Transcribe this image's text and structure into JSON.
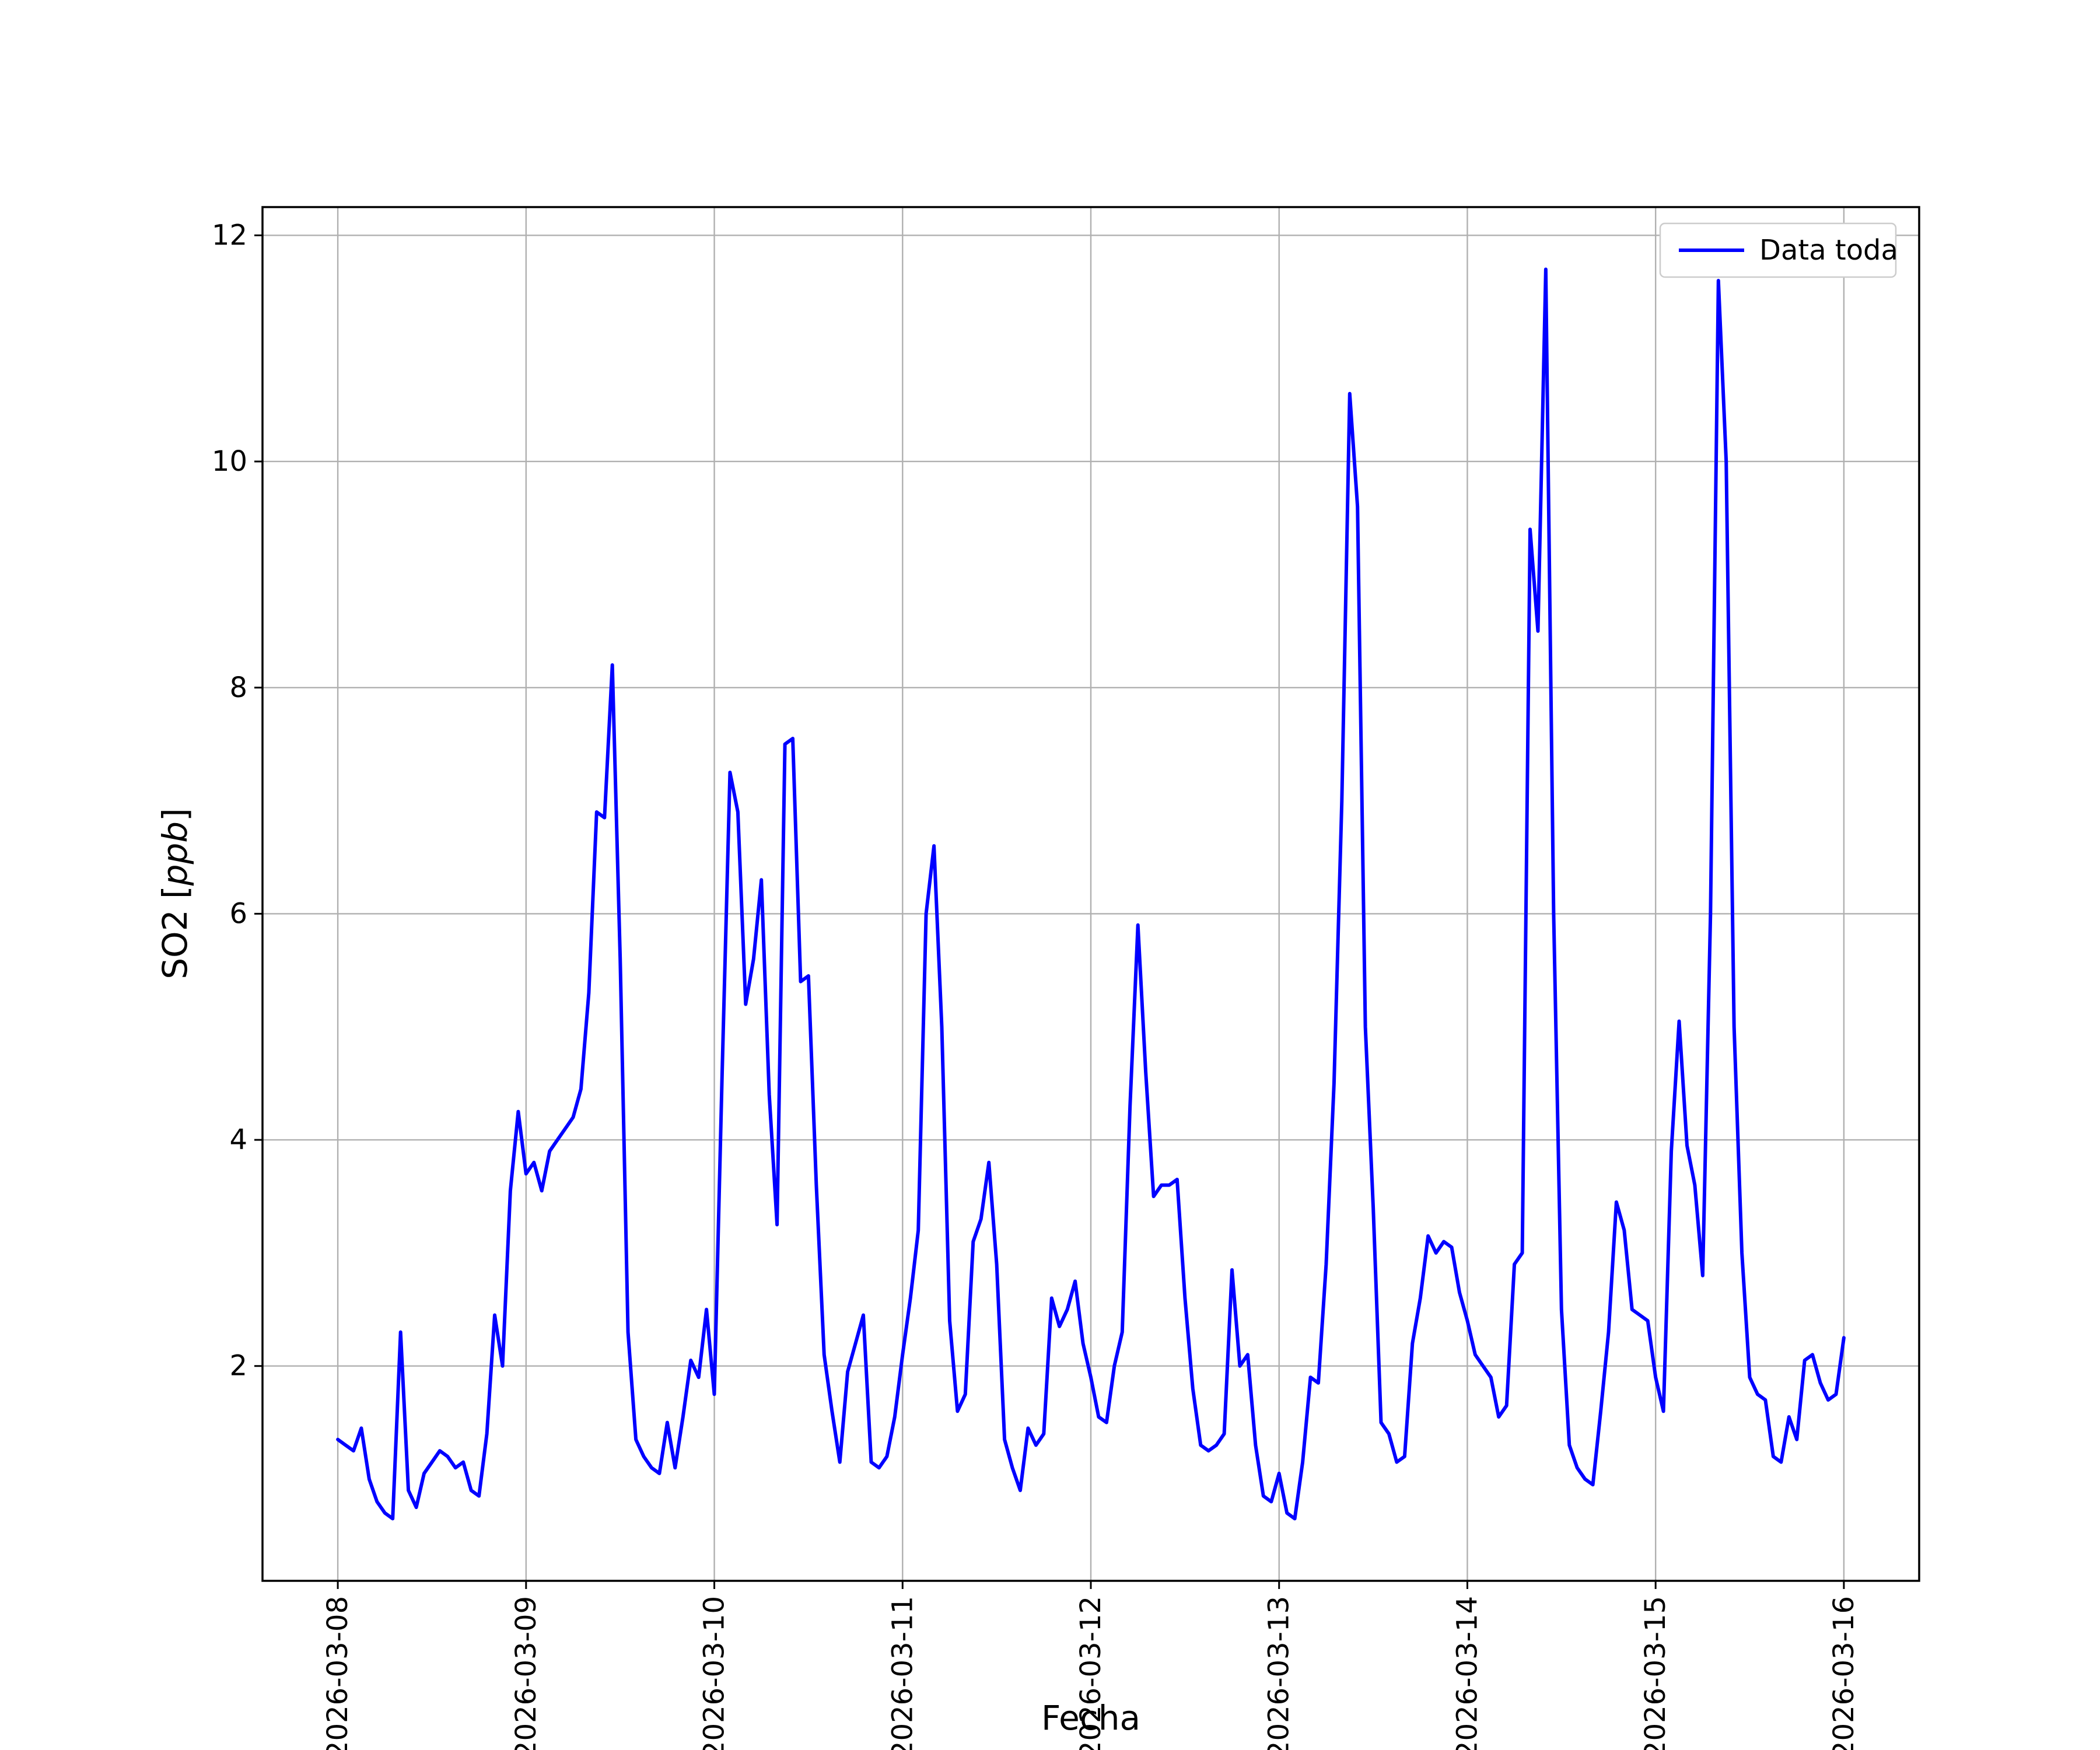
{
  "figure": {
    "background": "#ffffff",
    "frame_color": "#000000",
    "grid_color": "#b0b0b0",
    "xlabel": "Fecha",
    "ylabel_prefix": "SO2 [",
    "ylabel_italic": "ppb",
    "ylabel_suffix": "]",
    "legend": {
      "label": "Data toda",
      "line_color": "#0000ff",
      "position": "upper right"
    }
  },
  "chart_data": {
    "type": "line",
    "title": "",
    "xlabel": "Fecha",
    "ylabel": "SO2 [ppb]",
    "grid": true,
    "legend_position": "upper right",
    "x_tick_labels": [
      "2026-03-08",
      "2026-03-09",
      "2026-03-10",
      "2026-03-11",
      "2026-03-12",
      "2026-03-13",
      "2026-03-14",
      "2026-03-15",
      "2026-03-16"
    ],
    "y_ticks": [
      2,
      4,
      6,
      8,
      10,
      12
    ],
    "xlim_days_relative_to_first_tick": [
      -0.4,
      8.4
    ],
    "ylim": [
      0.1,
      12.25
    ],
    "series": [
      {
        "name": "Data toda",
        "color": "#0000ff",
        "start": "2026-03-08 00:00",
        "interval_hours": 1,
        "values": [
          1.35,
          1.3,
          1.25,
          1.45,
          1.0,
          0.8,
          0.7,
          0.65,
          2.3,
          0.9,
          0.75,
          1.05,
          1.15,
          1.25,
          1.2,
          1.1,
          1.15,
          0.9,
          0.85,
          1.4,
          2.45,
          2.0,
          3.55,
          4.25,
          3.7,
          3.8,
          3.55,
          3.9,
          4.0,
          4.1,
          4.2,
          4.45,
          5.3,
          6.9,
          6.85,
          8.2,
          5.6,
          2.3,
          1.35,
          1.2,
          1.1,
          1.05,
          1.5,
          1.1,
          1.55,
          2.05,
          1.9,
          2.5,
          1.75,
          4.6,
          7.25,
          6.9,
          5.2,
          5.6,
          6.3,
          4.4,
          3.25,
          7.5,
          7.55,
          5.4,
          5.45,
          3.6,
          2.1,
          1.6,
          1.15,
          1.95,
          2.2,
          2.45,
          1.15,
          1.1,
          1.2,
          1.55,
          2.1,
          2.6,
          3.2,
          6.0,
          6.6,
          5.0,
          2.4,
          1.6,
          1.75,
          3.1,
          3.3,
          3.8,
          2.9,
          1.35,
          1.1,
          0.9,
          1.45,
          1.3,
          1.4,
          2.6,
          2.35,
          2.5,
          2.75,
          2.2,
          1.9,
          1.55,
          1.5,
          2.0,
          2.3,
          4.3,
          5.9,
          4.6,
          3.5,
          3.6,
          3.6,
          3.65,
          2.6,
          1.8,
          1.3,
          1.25,
          1.3,
          1.4,
          2.85,
          2.0,
          2.1,
          1.3,
          0.85,
          0.8,
          1.05,
          0.7,
          0.65,
          1.15,
          1.9,
          1.85,
          2.9,
          4.5,
          7.0,
          10.6,
          9.6,
          5.0,
          3.4,
          1.5,
          1.4,
          1.15,
          1.2,
          2.2,
          2.6,
          3.15,
          3.0,
          3.1,
          3.05,
          2.65,
          2.4,
          2.1,
          2.0,
          1.9,
          1.55,
          1.65,
          2.9,
          3.0,
          9.4,
          8.5,
          11.7,
          6.0,
          2.5,
          1.3,
          1.1,
          1.0,
          0.95,
          1.6,
          2.3,
          3.45,
          3.2,
          2.5,
          2.45,
          2.4,
          1.9,
          1.6,
          3.9,
          5.05,
          3.95,
          3.6,
          2.8,
          6.0,
          11.6,
          10.0,
          5.0,
          3.0,
          1.9,
          1.75,
          1.7,
          1.2,
          1.15,
          1.55,
          1.35,
          2.05,
          2.1,
          1.85,
          1.7,
          1.75,
          2.25
        ]
      }
    ]
  }
}
